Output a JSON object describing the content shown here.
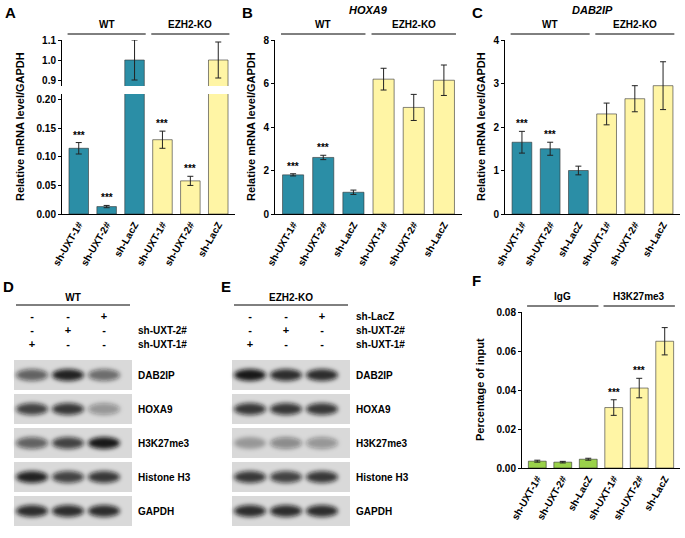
{
  "chart_data": [
    {
      "panel": "A",
      "type": "bar",
      "y_label": "Relative mRNA level/GAPDH",
      "categories": [
        "sh-UXT-1#",
        "sh-UXT-2#",
        "sh-LacZ",
        "sh-UXT-1#",
        "sh-UXT-2#",
        "sh-LacZ"
      ],
      "values": [
        0.115,
        0.013,
        1.0,
        0.13,
        0.058,
        1.0
      ],
      "errors": [
        0.01,
        0.002,
        0.1,
        0.015,
        0.008,
        0.09
      ],
      "colors": [
        "#2b8ea6",
        "#2b8ea6",
        "#2b8ea6",
        "#fff5a5",
        "#fff5a5",
        "#fff5a5"
      ],
      "significance": [
        "***",
        "***",
        null,
        "***",
        "***",
        null
      ],
      "groups": [
        {
          "label": "WT",
          "count": 3
        },
        {
          "label": "EZH2-KO",
          "count": 3
        }
      ],
      "ylim": [
        0,
        1.1
      ],
      "ybreak": [
        0.21,
        0.87
      ],
      "yticks": [
        {
          "value": 0,
          "label": "0.00"
        },
        0.05,
        {
          "value": 0.1,
          "label": "0.10"
        },
        0.15,
        {
          "value": 0.2,
          "label": "0.20"
        },
        0.9,
        {
          "value": 1,
          "label": "1.0"
        },
        1.1
      ]
    },
    {
      "panel": "B",
      "type": "bar",
      "title": "HOXA9",
      "y_label": "Relative mRNA level/GAPDH",
      "categories": [
        "sh-UXT-1#",
        "sh-UXT-2#",
        "sh-LacZ",
        "sh-UXT-1#",
        "sh-UXT-2#",
        "sh-LacZ"
      ],
      "values": [
        1.8,
        2.6,
        1.0,
        6.2,
        4.9,
        6.15
      ],
      "errors": [
        0.05,
        0.1,
        0.1,
        0.5,
        0.6,
        0.7
      ],
      "colors": [
        "#2b8ea6",
        "#2b8ea6",
        "#2b8ea6",
        "#fff5a5",
        "#fff5a5",
        "#fff5a5"
      ],
      "significance": [
        "***",
        "***",
        null,
        null,
        null,
        null
      ],
      "groups": [
        {
          "label": "WT",
          "count": 3
        },
        {
          "label": "EZH2-KO",
          "count": 3
        }
      ],
      "ylim": [
        0,
        8
      ],
      "yticks": [
        0,
        2,
        4,
        6,
        8
      ]
    },
    {
      "panel": "C",
      "type": "bar",
      "title": "DAB2IP",
      "y_label": "Relative mRNA level/GAPDH",
      "categories": [
        "sh-UXT-1#",
        "sh-UXT-2#",
        "sh-LacZ",
        "sh-UXT-1#",
        "sh-UXT-2#",
        "sh-LacZ"
      ],
      "values": [
        1.65,
        1.5,
        1.0,
        2.3,
        2.65,
        2.95
      ],
      "errors": [
        0.25,
        0.15,
        0.1,
        0.25,
        0.3,
        0.55
      ],
      "colors": [
        "#2b8ea6",
        "#2b8ea6",
        "#2b8ea6",
        "#fff5a5",
        "#fff5a5",
        "#fff5a5"
      ],
      "significance": [
        "***",
        "***",
        null,
        null,
        null,
        null
      ],
      "groups": [
        {
          "label": "WT",
          "count": 3
        },
        {
          "label": "EZH2-KO",
          "count": 3
        }
      ],
      "ylim": [
        0,
        4
      ],
      "yticks": [
        0,
        1,
        2,
        3,
        4
      ]
    },
    {
      "panel": "F",
      "type": "bar",
      "y_label": "Percentage of input",
      "categories": [
        "sh-UXT-1#",
        "sh-UXT-2#",
        "sh-LacZ",
        "sh-UXT-1#",
        "sh-UXT-2#",
        "sh-LacZ"
      ],
      "values": [
        0.0035,
        0.003,
        0.0045,
        0.031,
        0.041,
        0.065
      ],
      "errors": [
        0.0005,
        0.0004,
        0.0005,
        0.004,
        0.005,
        0.007
      ],
      "colors": [
        "#9ad24a",
        "#9ad24a",
        "#9ad24a",
        "#fff5a5",
        "#fff5a5",
        "#fff5a5"
      ],
      "significance": [
        null,
        null,
        null,
        "***",
        "***",
        null
      ],
      "groups": [
        {
          "label": "IgG",
          "count": 3
        },
        {
          "label": "H3K27me3",
          "count": 3
        }
      ],
      "ylim": [
        0,
        0.08
      ],
      "yticks": [
        {
          "value": 0,
          "label": "0.00"
        },
        0.02,
        0.04,
        0.06,
        0.08
      ]
    }
  ],
  "blots": [
    {
      "panel": "D",
      "header": "WT",
      "conditions": [
        {
          "label": null,
          "signs": [
            "-",
            "-",
            "+"
          ]
        },
        {
          "label": "sh-UXT-2#",
          "signs": [
            "-",
            "+",
            "-"
          ]
        },
        {
          "label": "sh-UXT-1#",
          "signs": [
            "+",
            "-",
            "-"
          ]
        }
      ],
      "rows": [
        {
          "label": "DAB2IP",
          "intensity": [
            0.6,
            0.9,
            0.55
          ]
        },
        {
          "label": "HOXA9",
          "intensity": [
            0.75,
            0.8,
            0.35
          ]
        },
        {
          "label": "H3K27me3",
          "intensity": [
            0.6,
            0.75,
            0.95
          ]
        },
        {
          "label": "Histone H3",
          "intensity": [
            0.9,
            0.75,
            0.8
          ]
        },
        {
          "label": "GAPDH",
          "intensity": [
            0.85,
            0.85,
            0.85
          ]
        }
      ]
    },
    {
      "panel": "E",
      "header": "EZH2-KO",
      "conditions": [
        {
          "label": "sh-LacZ",
          "signs": [
            "-",
            "-",
            "+"
          ]
        },
        {
          "label": "sh-UXT-2#",
          "signs": [
            "-",
            "+",
            "-"
          ]
        },
        {
          "label": "sh-UXT-1#",
          "signs": [
            "+",
            "-",
            "-"
          ]
        }
      ],
      "rows": [
        {
          "label": "DAB2IP",
          "intensity": [
            0.95,
            0.85,
            0.85
          ]
        },
        {
          "label": "HOXA9",
          "intensity": [
            0.8,
            0.8,
            0.8
          ]
        },
        {
          "label": "H3K27me3",
          "intensity": [
            0.3,
            0.4,
            0.35
          ]
        },
        {
          "label": "Histone H3",
          "intensity": [
            0.8,
            0.75,
            0.8
          ]
        },
        {
          "label": "GAPDH",
          "intensity": [
            0.85,
            0.85,
            0.85
          ]
        }
      ]
    }
  ]
}
